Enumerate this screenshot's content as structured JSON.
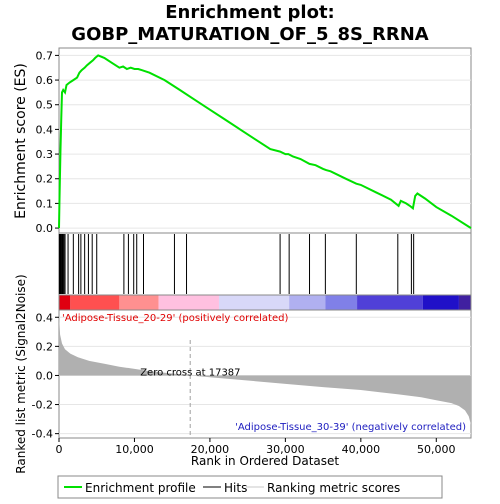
{
  "title_line1": "Enrichment plot:",
  "title_line2": "GOBP_MATURATION_OF_5_8S_RRNA",
  "colors": {
    "es_line": "#00e000",
    "hits": "#000000",
    "metric_fill": "#b0b0b0",
    "pos_label": "#e00000",
    "neg_label": "#2020c0",
    "zero_cross_line": "#a0a0a0"
  },
  "chart_data": {
    "type": "line",
    "n_genes": 54600,
    "es_panel": {
      "ylabel": "Enrichment score (ES)",
      "ylim": [
        -0.02,
        0.73
      ],
      "yticks": [
        "0.0",
        "0.1",
        "0.2",
        "0.3",
        "0.4",
        "0.5",
        "0.6",
        "0.7"
      ],
      "profile": {
        "x": [
          0,
          60,
          130,
          200,
          300,
          400,
          550,
          800,
          1000,
          1400,
          1900,
          2400,
          2700,
          3000,
          3400,
          3700,
          4100,
          4500,
          4800,
          5200,
          6000,
          7000,
          8000,
          8500,
          9000,
          9500,
          10000,
          10500,
          11000,
          12000,
          14000,
          16000,
          18000,
          20000,
          22000,
          24000,
          26000,
          28000,
          29300,
          30000,
          30400,
          31000,
          32000,
          33200,
          34000,
          35000,
          35400,
          36000,
          38000,
          39400,
          40000,
          42000,
          44000,
          45000,
          45300,
          46000,
          46500,
          46900,
          47200,
          47500,
          48500,
          50000,
          52000,
          54600
        ],
        "es": [
          0.0,
          0.12,
          0.22,
          0.32,
          0.45,
          0.55,
          0.56,
          0.55,
          0.58,
          0.59,
          0.6,
          0.61,
          0.63,
          0.64,
          0.65,
          0.66,
          0.67,
          0.68,
          0.69,
          0.7,
          0.69,
          0.67,
          0.65,
          0.655,
          0.645,
          0.65,
          0.645,
          0.645,
          0.64,
          0.63,
          0.6,
          0.56,
          0.52,
          0.48,
          0.44,
          0.4,
          0.36,
          0.32,
          0.31,
          0.3,
          0.3,
          0.29,
          0.28,
          0.26,
          0.255,
          0.24,
          0.235,
          0.23,
          0.2,
          0.18,
          0.175,
          0.145,
          0.115,
          0.09,
          0.11,
          0.1,
          0.09,
          0.08,
          0.13,
          0.14,
          0.12,
          0.085,
          0.05,
          0.0
        ]
      }
    },
    "hits": [
      50,
      120,
      180,
      250,
      320,
      420,
      520,
      650,
      800,
      1200,
      1900,
      2600,
      2900,
      3400,
      3900,
      4400,
      5000,
      8600,
      9200,
      9900,
      10300,
      11200,
      15300,
      16900,
      29300,
      30500,
      33200,
      35300,
      39400,
      44900,
      46700,
      47000
    ],
    "rank_bar": {
      "pos_label": "'Adipose-Tissue_20-29' (positively correlated)",
      "neg_label": "'Adipose-Tissue_30-39' (negatively correlated)",
      "segments": [
        {
          "end": 1500,
          "color": "#e00010"
        },
        {
          "end": 8000,
          "color": "#ff5050"
        },
        {
          "end": 13200,
          "color": "#ff9090"
        },
        {
          "end": 21200,
          "color": "#ffc0e0"
        },
        {
          "end": 30500,
          "color": "#d8d8f8"
        },
        {
          "end": 35300,
          "color": "#b0b0f0"
        },
        {
          "end": 39500,
          "color": "#8080e8"
        },
        {
          "end": 48200,
          "color": "#5040d8"
        },
        {
          "end": 53000,
          "color": "#2010c8"
        },
        {
          "end": 54600,
          "color": "#4020a0"
        }
      ]
    },
    "metric_panel": {
      "ylabel": "Ranked list metric (Signal2Noise)",
      "ylim": [
        -0.43,
        0.45
      ],
      "yticks": [
        "-0.4",
        "-0.2",
        "0.0",
        "0.2",
        "0.4"
      ],
      "curve": {
        "x": [
          0,
          150,
          400,
          800,
          1500,
          2500,
          4000,
          6000,
          8000,
          10000,
          12000,
          14000,
          16000,
          17387,
          20000,
          25000,
          30000,
          35000,
          40000,
          45000,
          48000,
          50000,
          52000,
          53000,
          53800,
          54300,
          54600
        ],
        "y": [
          0.42,
          0.28,
          0.22,
          0.18,
          0.15,
          0.125,
          0.1,
          0.08,
          0.06,
          0.045,
          0.03,
          0.018,
          0.008,
          0.0,
          -0.012,
          -0.035,
          -0.058,
          -0.08,
          -0.1,
          -0.13,
          -0.15,
          -0.17,
          -0.19,
          -0.21,
          -0.24,
          -0.28,
          -0.34
        ]
      },
      "zero_cross_rank": 17387,
      "zero_cross_label": "Zero cross at 17387"
    },
    "xaxis": {
      "xlabel": "Rank in Ordered Dataset",
      "ticks": [
        0,
        10000,
        20000,
        30000,
        40000,
        50000
      ],
      "tick_labels": [
        "0",
        "10,000",
        "20,000",
        "30,000",
        "40,000",
        "50,000"
      ]
    },
    "legend": {
      "placement": "bottom",
      "items": [
        {
          "label": "Enrichment profile",
          "kind": "es"
        },
        {
          "label": "Hits",
          "kind": "hits"
        },
        {
          "label": "Ranking metric scores",
          "kind": "metric"
        }
      ]
    }
  }
}
